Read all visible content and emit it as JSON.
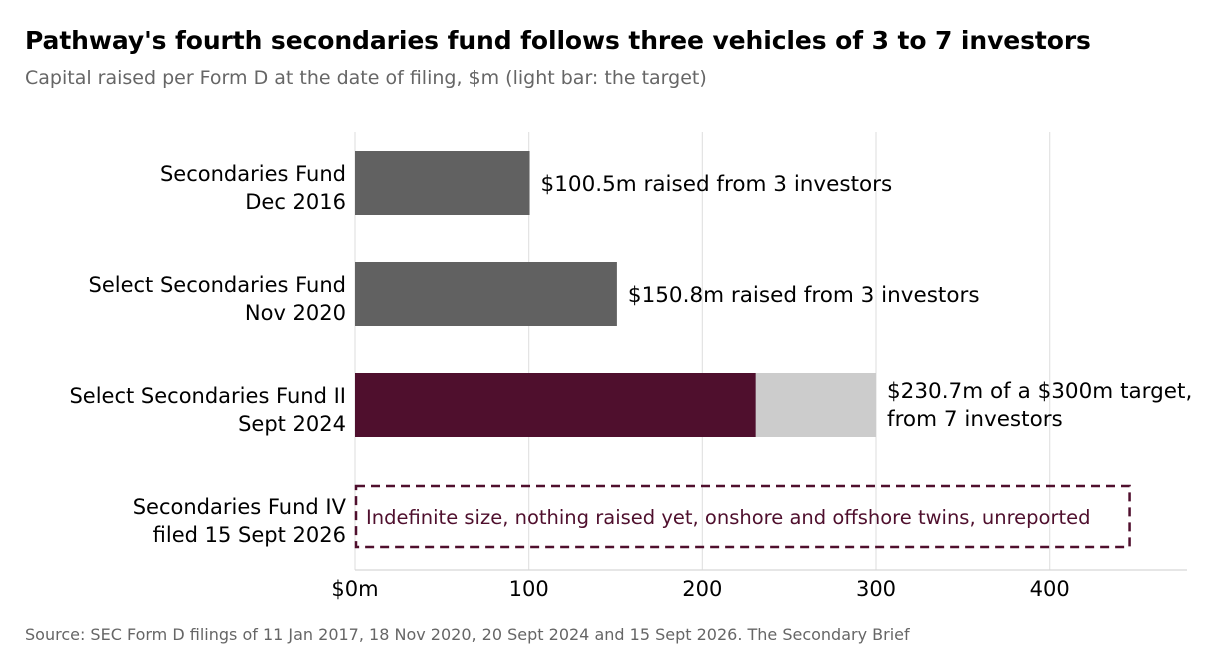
{
  "title": "Pathway's fourth secondaries fund follows three vehicles of 3 to 7 investors",
  "subtitle": "Capital raised per Form D at the date of filing, $m (light bar: the target)",
  "source": "Source: SEC Form D filings of 11 Jan 2017, 18 Nov 2020, 20 Sept 2024 and 15 Sept 2026.  The Secondary Brief",
  "chart_data": {
    "type": "bar",
    "orientation": "horizontal",
    "xlim": [
      0,
      480
    ],
    "xticks": [
      0,
      100,
      200,
      300,
      400
    ],
    "xtick_labels": [
      "$0m",
      "100",
      "200",
      "300",
      "400"
    ],
    "grid": "vertical",
    "categories": [
      {
        "line1": "Secondaries Fund",
        "line2": "Dec 2016"
      },
      {
        "line1": "Select Secondaries Fund",
        "line2": "Nov 2020"
      },
      {
        "line1": "Select Secondaries Fund II",
        "line2": "Sept 2024"
      },
      {
        "line1": "Secondaries Fund IV",
        "line2": "filed 15 Sept 2026"
      }
    ],
    "bars": [
      {
        "raised": 100.5,
        "target": null,
        "color": "#616161",
        "label": [
          "$100.5m raised from 3 investors"
        ]
      },
      {
        "raised": 150.8,
        "target": null,
        "color": "#616161",
        "label": [
          "$150.8m raised from 3 investors"
        ]
      },
      {
        "raised": 230.7,
        "target": 300,
        "color": "#4f0f2d",
        "target_color": "#cccccc",
        "label": [
          "$230.7m of a $300m target,",
          "from 7 investors"
        ]
      },
      {
        "raised": 0,
        "target": null,
        "dashed_extent": 446,
        "outline_color": "#4f0f2d",
        "label": [
          "Indefinite size, nothing raised yet, onshore and offshore twins, unreported"
        ]
      }
    ]
  }
}
